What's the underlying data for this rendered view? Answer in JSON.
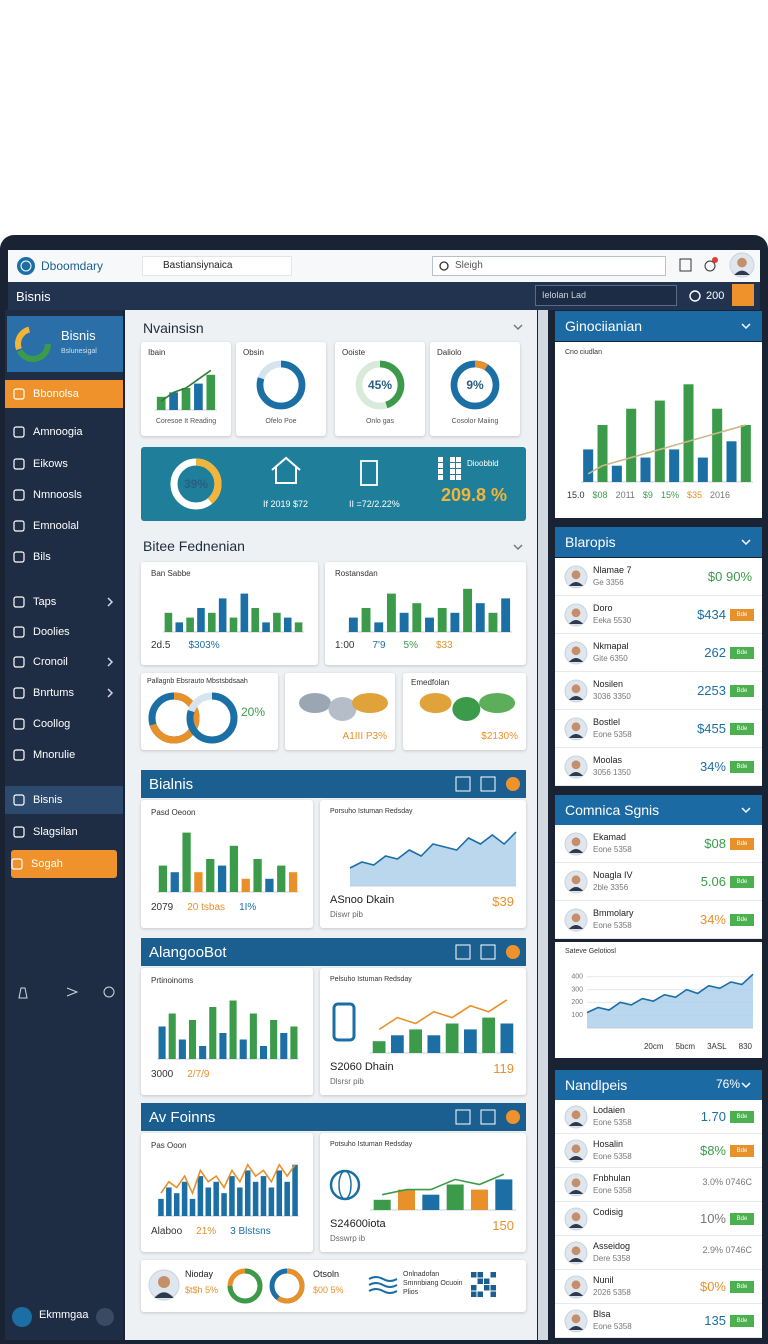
{
  "header": {
    "logo": "Dboomdary",
    "tab": "Bastiansiynaica",
    "search": "Sleigh"
  },
  "toolbar": {
    "title": "Bisnis",
    "filter": "Ielolan Lad",
    "count": "200"
  },
  "sidebar": {
    "brand_title": "Bisnis",
    "brand_subtitle": "Bslunesigal",
    "items": [
      {
        "label": "Bbonolsa",
        "state": "active"
      },
      {
        "label": "Amnoogia"
      },
      {
        "label": "Eikows"
      },
      {
        "label": "Nmnoosls"
      },
      {
        "label": "Emnoolal"
      },
      {
        "label": "Bils"
      },
      {
        "label": "Taps",
        "submenu": true
      },
      {
        "label": "Doolies"
      },
      {
        "label": "Cronoil",
        "submenu": true
      },
      {
        "label": "Bnrtums",
        "submenu": true
      },
      {
        "label": "Coollog"
      },
      {
        "label": "Mnorulie"
      },
      {
        "label": "Bisnis",
        "state": "selected"
      },
      {
        "label": "Slagsilan"
      },
      {
        "label": "Sogah",
        "state": "highlight"
      }
    ],
    "user": "Ekmmgaa"
  },
  "overview": {
    "title": "Nvainsisn",
    "cards": [
      {
        "label": "Ibain",
        "caption": "Coresoe It Reading",
        "chart": {
          "type": "bar",
          "values": [
            3,
            4,
            5,
            6,
            8
          ],
          "ylim": [
            0,
            10
          ],
          "colors": [
            "#3c9b4a",
            "#1b6fa5"
          ],
          "line": [
            2,
            4,
            5,
            7,
            9
          ],
          "line_color": "#2e7d32"
        }
      },
      {
        "label": "Obsin",
        "caption": "Ofelo Poe",
        "chart": {
          "type": "donut",
          "value": 80,
          "colors": [
            "#1b6fa5",
            "#d5e4ee"
          ]
        }
      },
      {
        "label": "Ooiste",
        "caption": "Onlo gas",
        "chart": {
          "type": "donut",
          "value": 45,
          "label": "45%",
          "colors": [
            "#3c9b4a",
            "#d8ead9"
          ]
        }
      },
      {
        "label": "Daliolo",
        "caption": "Cosolor Maiing",
        "chart": {
          "type": "donut",
          "value": 9,
          "label": "9%",
          "colors": [
            "#e8902a",
            "#1b6fa5"
          ]
        }
      }
    ]
  },
  "banner": {
    "chart": {
      "type": "donut",
      "value": 39,
      "label": "39%",
      "colors": [
        "#f2b53a",
        "#ffffff"
      ]
    },
    "items": [
      "If 2019 $72",
      "II =72/2.22%"
    ],
    "qr_title": "Dioobbld",
    "qr_value": "209.8 %"
  },
  "reports": {
    "title": "Bitee Fednenian",
    "cards": [
      {
        "label": "Ban Sabbe",
        "chart": {
          "type": "bar",
          "values": [
            4,
            2,
            3,
            5,
            4,
            7,
            3,
            8,
            5,
            2,
            4,
            3,
            2
          ],
          "ylim": [
            0,
            10
          ],
          "colors": [
            "#3c9b4a",
            "#1b6fa5"
          ]
        },
        "footer": [
          "2d.5",
          "$303%"
        ]
      },
      {
        "label": "Rostansdan",
        "chart": {
          "type": "bar",
          "values": [
            3,
            5,
            2,
            8,
            4,
            6,
            3,
            5,
            4,
            9,
            6,
            4,
            7
          ],
          "ylim": [
            0,
            10
          ],
          "colors": [
            "#1b6fa5",
            "#3c9b4a"
          ]
        },
        "footer": [
          "1:00",
          "7'9",
          "5%",
          "$33"
        ]
      }
    ],
    "donut_card": {
      "label": "Pallagnb Ebsrauto Mbstsbdsaah",
      "charts": [
        {
          "type": "donut",
          "value": 70,
          "colors": [
            "#e8902a",
            "#1b6fa5"
          ]
        },
        {
          "type": "donut",
          "value": 80,
          "colors": [
            "#1b6fa5",
            "#d5e4ee"
          ]
        }
      ],
      "value": "20%"
    },
    "map_cards": [
      {
        "value": "A1III P3%"
      },
      {
        "label": "Emedfolan",
        "value": "$2130%"
      }
    ]
  },
  "panels": [
    {
      "title": "Bialnis",
      "left": {
        "label": "Pasd Oeoon",
        "chart": {
          "type": "bar",
          "values": [
            4,
            3,
            9,
            3,
            5,
            4,
            7,
            2,
            5,
            2,
            4,
            3
          ],
          "ylim": [
            0,
            10
          ],
          "colors": [
            "#3c9b4a",
            "#1b6fa5",
            "#3c9b4a",
            "#e8902a"
          ]
        },
        "footer": [
          "2079",
          "20 tsbas",
          "1I%"
        ]
      },
      "right": {
        "label": "Porsuho Istuman Redsday",
        "chart": {
          "type": "area",
          "values": [
            3,
            4,
            3.5,
            5,
            4.5,
            6,
            5,
            7,
            6.5,
            6,
            8,
            7,
            8.5,
            7,
            9
          ],
          "ylim": [
            0,
            10
          ],
          "colors": [
            "#1b6fa5",
            "#a9cdea"
          ]
        },
        "footer": [
          "ASnoo Dkain",
          "Diswr pib",
          "$39"
        ]
      }
    },
    {
      "title": "AlangooBot",
      "left": {
        "label": "Prtinoinoms",
        "chart": {
          "type": "bar",
          "values": [
            5,
            7,
            3,
            6,
            2,
            8,
            4,
            9,
            3,
            7,
            2,
            6,
            4,
            5
          ],
          "ylim": [
            0,
            10
          ],
          "colors": [
            "#1b6fa5",
            "#3c9b4a"
          ]
        },
        "footer": [
          "3000",
          "2/7/9"
        ]
      },
      "right": {
        "label": "Pelsuho Istuman Redsday",
        "chart": {
          "type": "bar",
          "values": [
            2,
            3,
            4,
            3,
            5,
            4,
            6,
            5
          ],
          "ylim": [
            0,
            10
          ],
          "colors": [
            "#3c9b4a",
            "#1b6fa5"
          ],
          "line": [
            4,
            6,
            5,
            7,
            6,
            8,
            7,
            9
          ],
          "line_color": "#e8902a"
        },
        "footer": [
          "S2060 Dhain",
          "Dlsrsr pib",
          "119"
        ]
      }
    },
    {
      "title": "Av Foinns",
      "left": {
        "label": "Pas Ooon",
        "chart": {
          "type": "bar",
          "values": [
            3,
            5,
            4,
            6,
            3,
            7,
            5,
            6,
            4,
            7,
            5,
            8,
            6,
            7,
            5,
            8,
            6,
            9
          ],
          "ylim": [
            0,
            10
          ],
          "colors": [
            "#1b6fa5"
          ],
          "line": [
            4,
            6,
            5,
            7,
            4,
            8,
            6,
            7,
            5,
            8,
            6,
            9,
            7,
            8,
            6,
            9,
            7,
            9
          ],
          "line_color": "#e8902a"
        },
        "footer": [
          "Alaboo",
          "21%",
          "3 Blstsns"
        ]
      },
      "right": {
        "label": "Potsuho Istuman Redsday",
        "chart": {
          "type": "bar",
          "values": [
            2,
            4,
            3,
            5,
            4,
            6
          ],
          "ylim": [
            0,
            10
          ],
          "colors": [
            "#3c9b4a",
            "#e8902a",
            "#1b6fa5"
          ],
          "line": [
            3,
            4,
            4,
            6,
            5,
            7
          ],
          "line_color": "#3c9b4a"
        },
        "footer": [
          "S24600iota",
          "Dsswrp ib",
          "150"
        ]
      }
    }
  ],
  "summary": {
    "name": "Nioday",
    "name_value": "$t$h 5%",
    "charts": [
      {
        "type": "donut",
        "value": 75,
        "colors": [
          "#3c9b4a",
          "#e8902a"
        ]
      },
      {
        "type": "donut",
        "value": 60,
        "colors": [
          "#e8902a",
          "#1b6fa5"
        ]
      }
    ],
    "stat_title": "Otsoln",
    "stat_value": "$00 5%",
    "note": "Onlnadofan Smnnbiang Ocuoin Plios"
  },
  "right": {
    "trend": {
      "title": "Ginociianian",
      "label": "Cno ciudlan",
      "chart": {
        "type": "bar",
        "values": [
          4,
          7,
          2,
          9,
          3,
          10,
          4,
          12,
          3,
          9,
          5,
          7
        ],
        "ylim": [
          0,
          14
        ],
        "colors": [
          "#1b6fa5",
          "#3c9b4a"
        ],
        "line": [
          1,
          2,
          2.5,
          3,
          3.5,
          4,
          4.5,
          5,
          5.5,
          6,
          6.5,
          7
        ],
        "line_color": "#c9b98a"
      },
      "footer": [
        "15.0",
        "$08",
        "2011",
        "$9",
        "15%",
        "$35",
        "2016"
      ]
    },
    "list": {
      "title": "Blaropis",
      "rows": [
        {
          "name": "Nlamae 7",
          "detail": "Ge 3356",
          "value": "$0 90%",
          "color": "#3c9b4a"
        },
        {
          "name": "Doro",
          "detail": "Eeka 5530",
          "value": "$434",
          "color": "#1b6fa5",
          "badge": "Bde",
          "badge_color": "#e8902a"
        },
        {
          "name": "Nkmapal",
          "detail": "Gite 6350",
          "value": "262",
          "color": "#1b6fa5",
          "badge": "Bde",
          "badge_color": "#4caf50"
        },
        {
          "name": "Nosilen",
          "detail": "3036 3350",
          "value": "2253",
          "color": "#1b6fa5",
          "badge": "Bde",
          "badge_color": "#4caf50"
        },
        {
          "name": "Bostlel",
          "detail": "Eone 5358",
          "value": "$455",
          "color": "#1b6fa5",
          "badge": "Bde",
          "badge_color": "#4caf50"
        },
        {
          "name": "Moolas",
          "detail": "3056 1350",
          "value": "34%",
          "color": "#1b6fa5",
          "badge": "Bde",
          "badge_color": "#4caf50"
        }
      ]
    },
    "signals": {
      "title": "Comnica Sgnis",
      "rows": [
        {
          "name": "Ekamad",
          "detail": "Eone 5358",
          "value": "$08",
          "color": "#3c9b4a",
          "badge": "Bde",
          "badge_color": "#e8902a"
        },
        {
          "name": "Noagla IV",
          "detail": "2ble 3356",
          "value": "5.06",
          "color": "#3c9b4a",
          "badge": "Bde",
          "badge_color": "#4caf50"
        },
        {
          "name": "Bmmolary",
          "detail": "Eone 5358",
          "value": "34%",
          "color": "#e8902a",
          "badge": "Bde",
          "badge_color": "#4caf50"
        }
      ],
      "chart_label": "Sateve Gelotiosl",
      "chart": {
        "type": "area",
        "values": [
          120,
          160,
          140,
          200,
          180,
          230,
          210,
          260,
          240,
          300,
          270,
          330,
          310,
          360,
          340,
          420
        ],
        "ylim": [
          0,
          500
        ],
        "yticks": [
          100,
          200,
          300,
          400
        ],
        "colors": [
          "#1b6fa5",
          "#a9cdea"
        ]
      },
      "footer": [
        "20cm",
        "5bcm",
        "3ASL",
        "830"
      ]
    },
    "people": {
      "title": "Nandlpeis",
      "value": "76%",
      "rows": [
        {
          "name": "Lodaien",
          "detail": "Eone 5358",
          "value": "1.70",
          "color": "#1b6fa5",
          "badge": "Bde",
          "badge_color": "#4caf50"
        },
        {
          "name": "Hosalin",
          "detail": "Eone 5358",
          "value": "$8%",
          "color": "#3c9b4a",
          "badge": "Bde",
          "badge_color": "#e8902a"
        },
        {
          "name": "Fnbhulan",
          "detail": "Eone 5358",
          "value": "3.0% 0746C",
          "color": "#777777"
        },
        {
          "name": "Codisig",
          "value": "10%",
          "color": "#777777",
          "badge": "Bde",
          "badge_color": "#4caf50"
        },
        {
          "name": "Asseidog",
          "detail": "Dere 5358",
          "value": "2.9% 0746C",
          "color": "#777777"
        },
        {
          "name": "Nunil",
          "detail": "2026 5358",
          "value": "$0%",
          "color": "#e8902a",
          "badge": "Bde",
          "badge_color": "#4caf50"
        },
        {
          "name": "Blsa",
          "detail": "Eone 5358",
          "value": "135",
          "color": "#1b6fa5",
          "badge": "Bde",
          "badge_color": "#4caf50"
        }
      ]
    }
  }
}
